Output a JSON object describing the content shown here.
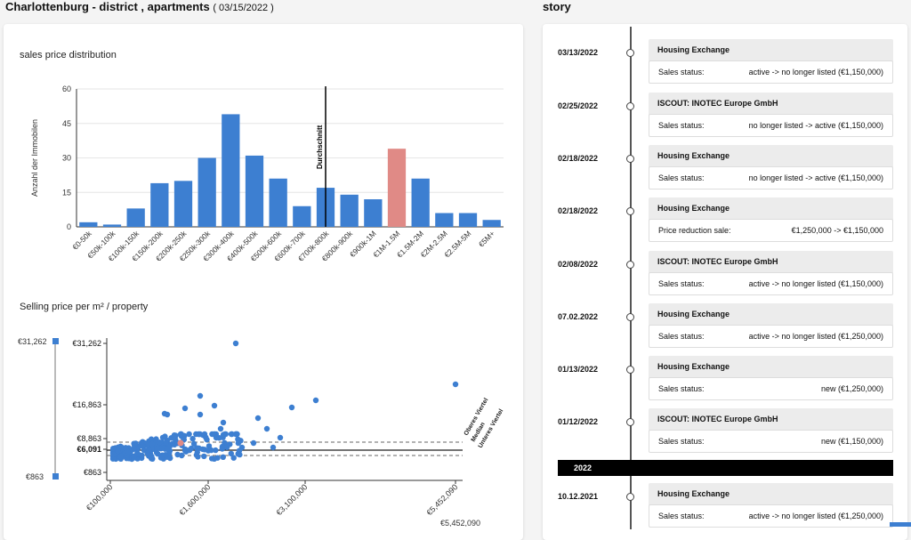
{
  "header": {
    "title": "Charlottenburg - district , apartments",
    "date": "( 03/15/2022 )",
    "story_title": "story"
  },
  "bar_section": {
    "title": "sales price distribution"
  },
  "scatter_section": {
    "title": "Selling price per m² / property"
  },
  "chart_data": [
    {
      "type": "bar",
      "title": "sales price distribution",
      "ylabel": "Anzahl der Immobilen",
      "ylim": [
        0,
        60
      ],
      "yticks": [
        0,
        15,
        30,
        45,
        60
      ],
      "categories": [
        "€0-50k",
        "€50k-100k",
        "€100k-150k",
        "€150k-200k",
        "€200k-250k",
        "€250k-300k",
        "€300k-400k",
        "€400k-500k",
        "€500k-600k",
        "€600k-700k",
        "€700k-800k",
        "€800k-900k",
        "€900k-1M",
        "€1M-1.5M",
        "€1.5M-2M",
        "€2M-2.5M",
        "€2.5M-5M",
        "€5M+"
      ],
      "values": [
        2,
        1,
        8,
        19,
        20,
        30,
        49,
        31,
        21,
        9,
        17,
        14,
        12,
        34,
        21,
        6,
        6,
        3
      ],
      "highlight_index": 13,
      "average_category_index": 10,
      "average_label": "Durchschnitt",
      "bar_color": "#3d7fd1",
      "highlight_color": "#e08a86"
    },
    {
      "type": "scatter",
      "title": "Selling price per m² / property",
      "xticks": [
        "€100,000",
        "€1,600,000",
        "€3,100,000",
        "€5,452,090"
      ],
      "yticks": [
        "€31,262",
        "€16,863",
        "€8,863",
        "€6,091",
        "€863"
      ],
      "x_max_label": "€5,452,090",
      "slider_max": "€31,262",
      "slider_min": "€863",
      "reference_lines": [
        "Oberes Viertel",
        "Median",
        "Unteres Viertel"
      ],
      "color": "#3d7fd1",
      "highlight_color": "#e08a86"
    }
  ],
  "story": {
    "entries": [
      {
        "date": "03/13/2022",
        "source": "Housing Exchange",
        "label": "Sales status:",
        "value": "active -> no longer listed (€1,150,000)"
      },
      {
        "date": "02/25/2022",
        "source": "ISCOUT: INOTEC Europe GmbH",
        "label": "Sales status:",
        "value": "no longer listed -> active (€1,150,000)"
      },
      {
        "date": "02/18/2022",
        "source": "Housing Exchange",
        "label": "Sales status:",
        "value": "no longer listed -> active (€1,150,000)"
      },
      {
        "date": "02/18/2022",
        "source": "Housing Exchange",
        "label": "Price reduction sale:",
        "value": "€1,250,000 -> €1,150,000"
      },
      {
        "date": "02/08/2022",
        "source": "ISCOUT: INOTEC Europe GmbH",
        "label": "Sales status:",
        "value": "active -> no longer listed (€1,150,000)"
      },
      {
        "date": "07.02.2022",
        "source": "Housing Exchange",
        "label": "Sales status:",
        "value": "active -> no longer listed (€1,250,000)"
      },
      {
        "date": "01/13/2022",
        "source": "Housing Exchange",
        "label": "Sales status:",
        "value": "new (€1,250,000)"
      },
      {
        "date": "01/12/2022",
        "source": "ISCOUT: INOTEC Europe GmbH",
        "label": "Sales status:",
        "value": "new (€1,150,000)"
      },
      {
        "date": "10.12.2021",
        "source": "Housing Exchange",
        "label": "Sales status:",
        "value": "active -> no longer listed (€1,250,000)"
      }
    ],
    "year_separator": "2022"
  }
}
